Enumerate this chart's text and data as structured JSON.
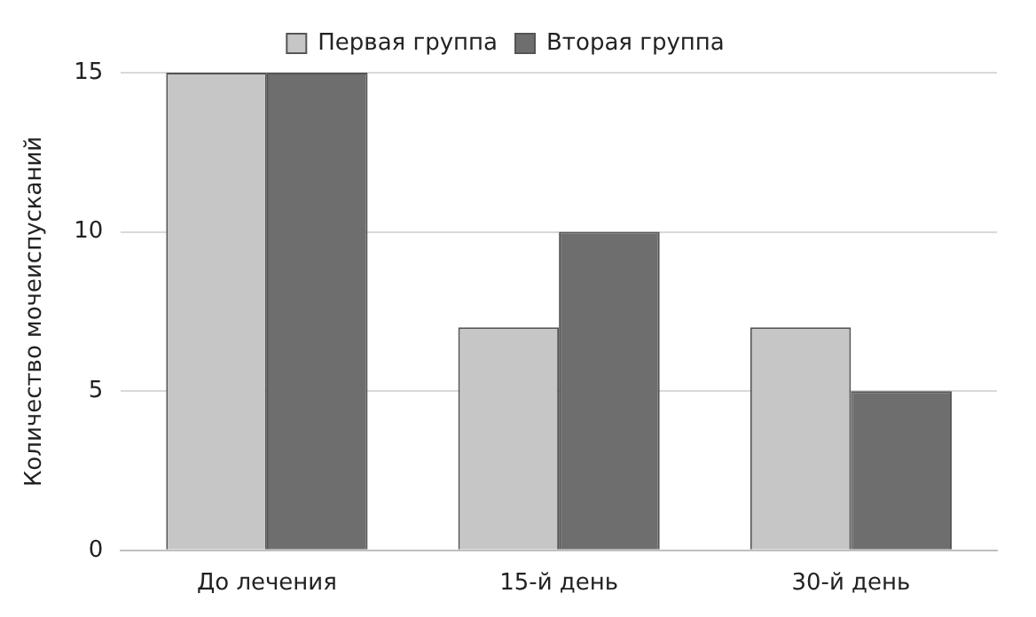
{
  "chart_data": {
    "type": "bar",
    "ylabel": "Количество мочеиспусканий",
    "categories": [
      "До лечения",
      "15-й день",
      "30-й день"
    ],
    "series": [
      {
        "name": "Первая группа",
        "color": "#c6c6c6",
        "values": [
          15,
          7,
          7
        ]
      },
      {
        "name": "Вторая группа",
        "color": "#6e6e6e",
        "values": [
          15,
          10,
          5
        ]
      }
    ],
    "ylim": [
      0,
      15
    ],
    "yticks": [
      0,
      5,
      10,
      15
    ],
    "grid": "y",
    "legend": "top"
  }
}
